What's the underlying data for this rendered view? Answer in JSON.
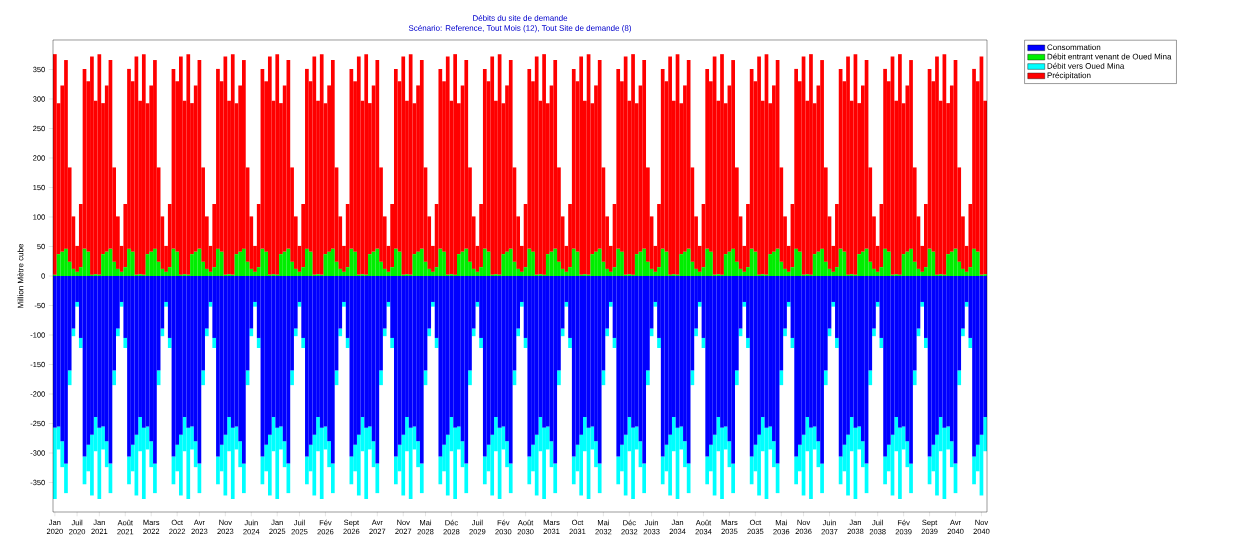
{
  "chart_data": {
    "type": "bar",
    "stacked": true,
    "title": "Débits du site de demande",
    "subtitle": "Scénario: Reference,  Tout Mois (12),  Tout Site de demande (8)",
    "ylabel": "Million Mètre cube",
    "legend": "top right",
    "categories": [
      "Jan 2020",
      null,
      null,
      null,
      null,
      null,
      "Juil 2020",
      null,
      null,
      null,
      null,
      null,
      "Jan 2021",
      null,
      null,
      null,
      null,
      null,
      null,
      "Août 2021",
      null,
      null,
      null,
      null,
      null,
      null,
      "Mars 2022",
      null,
      null,
      null,
      null,
      null,
      null,
      "Oct 2022",
      null,
      null,
      null,
      null,
      null,
      "Avr 2023",
      null,
      null,
      null,
      null,
      null,
      null,
      "Nov 2023",
      null,
      null,
      null,
      null,
      null,
      null,
      "Juin 2024",
      null,
      null,
      null,
      null,
      null,
      null,
      "Jan 2025",
      null,
      null,
      null,
      null,
      null,
      "Juil 2025",
      null,
      null,
      null,
      null,
      null,
      null,
      "Fév 2026",
      null,
      null,
      null,
      null,
      null,
      null,
      "Sept 2026",
      null,
      null,
      null,
      null,
      null,
      null,
      "Avr 2027",
      null,
      null,
      null,
      null,
      null,
      null,
      "Nov 2027",
      null,
      null,
      null,
      null,
      null,
      "Mai 2028",
      null,
      null,
      null,
      null,
      null,
      null,
      "Déc 2028",
      null,
      null,
      null,
      null,
      null,
      null,
      "Juil 2029",
      null,
      null,
      null,
      null,
      null,
      null,
      "Fév 2030",
      null,
      null,
      null,
      null,
      null,
      "Août 2030",
      null,
      null,
      null,
      null,
      null,
      null,
      "Mars 2031",
      null,
      null,
      null,
      null,
      null,
      null,
      "Oct 2031",
      null,
      null,
      null,
      null,
      null,
      null,
      "Mai 2032",
      null,
      null,
      null,
      null,
      null,
      null,
      "Déc 2032",
      null,
      null,
      null,
      null,
      null,
      "Juin 2033",
      null,
      null,
      null,
      null,
      null,
      null,
      "Jan 2034",
      null,
      null,
      null,
      null,
      null,
      null,
      "Août 2034",
      null,
      null,
      null,
      null,
      null,
      null,
      "Mars 2035",
      null,
      null,
      null,
      null,
      null,
      null,
      "Oct 2035",
      null,
      null,
      null,
      null,
      null,
      null,
      "Mai 2036",
      null,
      null,
      null,
      null,
      null,
      "Nov 2036",
      null,
      null,
      null,
      null,
      null,
      null,
      "Juin 2037",
      null,
      null,
      null,
      null,
      null,
      null,
      "Jan 2038",
      null,
      null,
      null,
      null,
      null,
      "Juil 2038",
      null,
      null,
      null,
      null,
      null,
      null,
      "Fév 2039",
      null,
      null,
      null,
      null,
      null,
      null,
      "Sept 2039",
      null,
      null,
      null,
      null,
      null,
      null,
      "Avr 2040",
      null,
      null,
      null,
      null,
      null,
      null,
      "Nov 2040",
      null
    ],
    "ylim": [
      -400,
      400
    ],
    "yticks": [
      -350,
      -300,
      -250,
      -200,
      -150,
      -100,
      -50,
      0,
      50,
      100,
      150,
      200,
      250,
      300,
      350
    ],
    "series": [
      {
        "name": "Consommation",
        "color": "#0000ff",
        "values": [
          -257,
          -255,
          -280,
          -318,
          -160,
          -89,
          -44,
          -105,
          -306,
          -286,
          -269,
          -239,
          -257,
          -255,
          -280,
          -318,
          -160,
          -89,
          -44,
          -105,
          -306,
          -286,
          -269,
          -239,
          -257,
          -255,
          -280,
          -318,
          -160,
          -89,
          -44,
          -105,
          -306,
          -286,
          -269,
          -239,
          -257,
          -255,
          -280,
          -318,
          -160,
          -89,
          -44,
          -105,
          -306,
          -286,
          -269,
          -239,
          -257,
          -255,
          -280,
          -318,
          -160,
          -89,
          -44,
          -105,
          -306,
          -286,
          -269,
          -239,
          -257,
          -255,
          -280,
          -318,
          -160,
          -89,
          -44,
          -105,
          -306,
          -286,
          -269,
          -239,
          -257,
          -255,
          -280,
          -318,
          -160,
          -89,
          -44,
          -105,
          -306,
          -286,
          -269,
          -239,
          -257,
          -255,
          -280,
          -318,
          -160,
          -89,
          -44,
          -105,
          -306,
          -286,
          -269,
          -239,
          -257,
          -255,
          -280,
          -318,
          -160,
          -89,
          -44,
          -105,
          -306,
          -286,
          -269,
          -239,
          -257,
          -255,
          -280,
          -318,
          -160,
          -89,
          -44,
          -105,
          -306,
          -286,
          -269,
          -239,
          -257,
          -255,
          -280,
          -318,
          -160,
          -89,
          -44,
          -105,
          -306,
          -286,
          -269,
          -239,
          -257,
          -255,
          -280,
          -318,
          -160,
          -89,
          -44,
          -105,
          -306,
          -286,
          -269,
          -239,
          -257,
          -255,
          -280,
          -318,
          -160,
          -89,
          -44,
          -105,
          -306,
          -286,
          -269,
          -239,
          -257,
          -255,
          -280,
          -318,
          -160,
          -89,
          -44,
          -105,
          -306,
          -286,
          -269,
          -239,
          -257,
          -255,
          -280,
          -318,
          -160,
          -89,
          -44,
          -105,
          -306,
          -286,
          -269,
          -239,
          -257,
          -255,
          -280,
          -318,
          -160,
          -89,
          -44,
          -105,
          -306,
          -286,
          -269,
          -239,
          -257,
          -255,
          -280,
          -318,
          -160,
          -89,
          -44,
          -105,
          -306,
          -286,
          -269,
          -239,
          -257,
          -255,
          -280,
          -318,
          -160,
          -89,
          -44,
          -105,
          -306,
          -286,
          -269,
          -239,
          -257,
          -255,
          -280,
          -318,
          -160,
          -89,
          -44,
          -105,
          -306,
          -286,
          -269,
          -239,
          -257,
          -255,
          -280,
          -318,
          -160,
          -89,
          -44,
          -105,
          -306,
          -286,
          -269,
          -239,
          -257,
          -255,
          -280,
          -318,
          -160,
          -89,
          -44,
          -105,
          -306,
          -286,
          -269,
          -239
        ]
      },
      {
        "name": "Débit entrant venant de Oued Mina",
        "color": "#00ee00",
        "values": [
          2,
          37,
          41,
          46,
          24,
          12,
          7,
          15,
          46,
          41,
          2,
          3,
          2,
          37,
          41,
          46,
          24,
          12,
          7,
          15,
          46,
          41,
          2,
          3,
          2,
          37,
          41,
          46,
          24,
          12,
          7,
          15,
          46,
          41,
          2,
          3,
          2,
          37,
          41,
          46,
          24,
          12,
          7,
          15,
          46,
          41,
          2,
          3,
          2,
          37,
          41,
          46,
          24,
          12,
          7,
          15,
          46,
          41,
          2,
          3,
          2,
          37,
          41,
          46,
          24,
          12,
          7,
          15,
          46,
          41,
          2,
          3,
          2,
          37,
          41,
          46,
          24,
          12,
          7,
          15,
          46,
          41,
          2,
          3,
          2,
          37,
          41,
          46,
          24,
          12,
          7,
          15,
          46,
          41,
          2,
          3,
          2,
          37,
          41,
          46,
          24,
          12,
          7,
          15,
          46,
          41,
          2,
          3,
          2,
          37,
          41,
          46,
          24,
          12,
          7,
          15,
          46,
          41,
          2,
          3,
          2,
          37,
          41,
          46,
          24,
          12,
          7,
          15,
          46,
          41,
          2,
          3,
          2,
          37,
          41,
          46,
          24,
          12,
          7,
          15,
          46,
          41,
          2,
          3,
          2,
          37,
          41,
          46,
          24,
          12,
          7,
          15,
          46,
          41,
          2,
          3,
          2,
          37,
          41,
          46,
          24,
          12,
          7,
          15,
          46,
          41,
          2,
          3,
          2,
          37,
          41,
          46,
          24,
          12,
          7,
          15,
          46,
          41,
          2,
          3,
          2,
          37,
          41,
          46,
          24,
          12,
          7,
          15,
          46,
          41,
          2,
          3,
          2,
          37,
          41,
          46,
          24,
          12,
          7,
          15,
          46,
          41,
          2,
          3,
          2,
          37,
          41,
          46,
          24,
          12,
          7,
          15,
          46,
          41,
          2,
          3,
          2,
          37,
          41,
          46,
          24,
          12,
          7,
          15,
          46,
          41,
          2,
          3,
          2,
          37,
          41,
          46,
          24,
          12,
          7,
          15,
          46,
          41,
          2,
          3,
          2,
          37,
          41,
          46,
          24,
          12,
          7,
          15,
          46,
          41,
          2,
          3
        ]
      },
      {
        "name": "Débit vers Oued Mina",
        "color": "#00ffff",
        "values": [
          -121,
          -39,
          -44,
          -50,
          -25,
          -13,
          -8,
          -17,
          -47,
          -45,
          -103,
          -58,
          -121,
          -39,
          -44,
          -50,
          -25,
          -13,
          -8,
          -17,
          -47,
          -45,
          -103,
          -58,
          -121,
          -39,
          -44,
          -50,
          -25,
          -13,
          -8,
          -17,
          -47,
          -45,
          -103,
          -58,
          -121,
          -39,
          -44,
          -50,
          -25,
          -13,
          -8,
          -17,
          -47,
          -45,
          -103,
          -58,
          -121,
          -39,
          -44,
          -50,
          -25,
          -13,
          -8,
          -17,
          -47,
          -45,
          -103,
          -58,
          -121,
          -39,
          -44,
          -50,
          -25,
          -13,
          -8,
          -17,
          -47,
          -45,
          -103,
          -58,
          -121,
          -39,
          -44,
          -50,
          -25,
          -13,
          -8,
          -17,
          -47,
          -45,
          -103,
          -58,
          -121,
          -39,
          -44,
          -50,
          -25,
          -13,
          -8,
          -17,
          -47,
          -45,
          -103,
          -58,
          -121,
          -39,
          -44,
          -50,
          -25,
          -13,
          -8,
          -17,
          -47,
          -45,
          -103,
          -58,
          -121,
          -39,
          -44,
          -50,
          -25,
          -13,
          -8,
          -17,
          -47,
          -45,
          -103,
          -58,
          -121,
          -39,
          -44,
          -50,
          -25,
          -13,
          -8,
          -17,
          -47,
          -45,
          -103,
          -58,
          -121,
          -39,
          -44,
          -50,
          -25,
          -13,
          -8,
          -17,
          -47,
          -45,
          -103,
          -58,
          -121,
          -39,
          -44,
          -50,
          -25,
          -13,
          -8,
          -17,
          -47,
          -45,
          -103,
          -58,
          -121,
          -39,
          -44,
          -50,
          -25,
          -13,
          -8,
          -17,
          -47,
          -45,
          -103,
          -58,
          -121,
          -39,
          -44,
          -50,
          -25,
          -13,
          -8,
          -17,
          -47,
          -45,
          -103,
          -58,
          -121,
          -39,
          -44,
          -50,
          -25,
          -13,
          -8,
          -17,
          -47,
          -45,
          -103,
          -58,
          -121,
          -39,
          -44,
          -50,
          -25,
          -13,
          -8,
          -17,
          -47,
          -45,
          -103,
          -58,
          -121,
          -39,
          -44,
          -50,
          -25,
          -13,
          -8,
          -17,
          -47,
          -45,
          -103,
          -58,
          -121,
          -39,
          -44,
          -50,
          -25,
          -13,
          -8,
          -17,
          -47,
          -45,
          -103,
          -58,
          -121,
          -39,
          -44,
          -50,
          -25,
          -13,
          -8,
          -17,
          -47,
          -45,
          -103,
          -58,
          -121,
          -39,
          -44,
          -50,
          -25,
          -13,
          -8,
          -17,
          -47,
          -45,
          -103,
          -58
        ]
      },
      {
        "name": "Précipitation",
        "color": "#ff0000",
        "values": [
          374,
          256,
          282,
          320,
          160,
          89,
          44,
          107,
          305,
          289,
          370,
          294,
          374,
          256,
          282,
          320,
          160,
          89,
          44,
          107,
          305,
          289,
          370,
          294,
          374,
          256,
          282,
          320,
          160,
          89,
          44,
          107,
          305,
          289,
          370,
          294,
          374,
          256,
          282,
          320,
          160,
          89,
          44,
          107,
          305,
          289,
          370,
          294,
          374,
          256,
          282,
          320,
          160,
          89,
          44,
          107,
          305,
          289,
          370,
          294,
          374,
          256,
          282,
          320,
          160,
          89,
          44,
          107,
          305,
          289,
          370,
          294,
          374,
          256,
          282,
          320,
          160,
          89,
          44,
          107,
          305,
          289,
          370,
          294,
          374,
          256,
          282,
          320,
          160,
          89,
          44,
          107,
          305,
          289,
          370,
          294,
          374,
          256,
          282,
          320,
          160,
          89,
          44,
          107,
          305,
          289,
          370,
          294,
          374,
          256,
          282,
          320,
          160,
          89,
          44,
          107,
          305,
          289,
          370,
          294,
          374,
          256,
          282,
          320,
          160,
          89,
          44,
          107,
          305,
          289,
          370,
          294,
          374,
          256,
          282,
          320,
          160,
          89,
          44,
          107,
          305,
          289,
          370,
          294,
          374,
          256,
          282,
          320,
          160,
          89,
          44,
          107,
          305,
          289,
          370,
          294,
          374,
          256,
          282,
          320,
          160,
          89,
          44,
          107,
          305,
          289,
          370,
          294,
          374,
          256,
          282,
          320,
          160,
          89,
          44,
          107,
          305,
          289,
          370,
          294,
          374,
          256,
          282,
          320,
          160,
          89,
          44,
          107,
          305,
          289,
          370,
          294,
          374,
          256,
          282,
          320,
          160,
          89,
          44,
          107,
          305,
          289,
          370,
          294,
          374,
          256,
          282,
          320,
          160,
          89,
          44,
          107,
          305,
          289,
          370,
          294,
          374,
          256,
          282,
          320,
          160,
          89,
          44,
          107,
          305,
          289,
          370,
          294,
          374,
          256,
          282,
          320,
          160,
          89,
          44,
          107,
          305,
          289,
          370,
          294,
          374,
          256,
          282,
          320,
          160,
          89,
          44,
          107,
          305,
          289,
          370,
          294
        ]
      }
    ]
  }
}
